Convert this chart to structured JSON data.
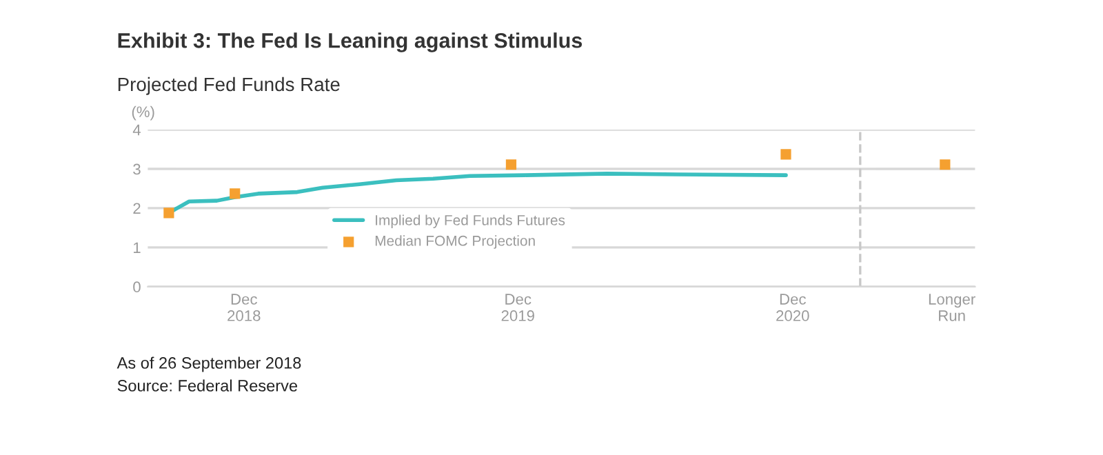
{
  "chart_data": {
    "type": "line",
    "title": "Exhibit 3: The Fed Is Leaning against Stimulus",
    "subtitle": "Projected Fed Funds Rate",
    "ylabel": "(%)",
    "annotations": [
      "As of 26 September 2018",
      "Source: Federal Reserve"
    ],
    "series": [
      {
        "name": "Implied by Fed Funds Futures",
        "color": "#3bbfbf",
        "x": [
          "2018-09-06",
          "2018-10-03",
          "2018-11-09",
          "2018-12-03",
          "2019-01-03",
          "2019-02-24",
          "2019-03-30",
          "2019-05-18",
          "2019-07-06",
          "2019-08-24",
          "2019-10-12",
          "2019-12-24",
          "2020-04-12",
          "2020-07-15",
          "2020-12-06"
        ],
        "values": [
          1.88,
          2.17,
          2.19,
          2.28,
          2.37,
          2.41,
          2.52,
          2.61,
          2.71,
          2.75,
          2.82,
          2.84,
          2.88,
          2.86,
          2.84
        ]
      },
      {
        "name": "Median FOMC Projection",
        "type": "scatter",
        "marker": "square",
        "color": "#f5a030",
        "x": [
          "2018-09-06",
          "2018-12-03",
          "2019-12-06",
          "2020-12-06",
          "2021-07-06"
        ],
        "values": [
          1.88,
          2.37,
          3.11,
          3.37,
          3.11
        ]
      }
    ],
    "xlim": [
      "2018-08-09",
      "2021-08-15"
    ],
    "xticks": [
      {
        "value": "2018-12-15",
        "label": "Dec\n2018"
      },
      {
        "value": "2019-12-15",
        "label": "Dec\n2019"
      },
      {
        "value": "2020-12-15",
        "label": "Dec\n2020"
      },
      {
        "value": "2021-07-15",
        "label": "Longer\nRun"
      }
    ],
    "ylim": [
      0,
      4
    ],
    "yticks": [
      0,
      1,
      2,
      3,
      4
    ],
    "grid": "y",
    "legend": "center",
    "ref_lines": [
      {
        "axis": "x",
        "value": "2021-03-15",
        "color": "#c8c8c8",
        "line_style": "dashed"
      }
    ]
  }
}
